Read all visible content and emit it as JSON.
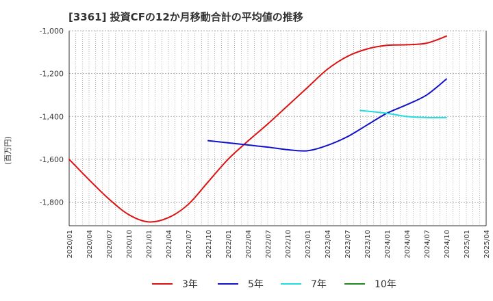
{
  "title": "[3361]  投資CFの12か月移動合計の平均値の推移",
  "chart_data": {
    "type": "line",
    "title": "[3361]  投資CFの12か月移動合計の平均値の推移",
    "ylabel": "(百万円)",
    "xlabel": "",
    "ylim": [
      -1910,
      -1000
    ],
    "yticks": [
      -1000,
      -1200,
      -1400,
      -1600,
      -1800
    ],
    "ytick_labels": [
      "-1,000",
      "-1,200",
      "-1,400",
      "-1,600",
      "-1,800"
    ],
    "xrange": [
      "2020-01",
      "2025-04"
    ],
    "xticks": [
      "2020/01",
      "2020/04",
      "2020/07",
      "2020/10",
      "2021/01",
      "2021/04",
      "2021/07",
      "2021/10",
      "2022/01",
      "2022/04",
      "2022/07",
      "2022/10",
      "2023/01",
      "2023/04",
      "2023/07",
      "2023/10",
      "2024/01",
      "2024/04",
      "2024/07",
      "2024/10",
      "2025/01",
      "2025/04"
    ],
    "grid": true,
    "legend_position": "bottom",
    "series": [
      {
        "name": "3年",
        "color": "#dd1111",
        "points": [
          [
            "2020-01",
            -1600
          ],
          [
            "2020-04",
            -1695
          ],
          [
            "2020-07",
            -1785
          ],
          [
            "2020-10",
            -1858
          ],
          [
            "2021-01",
            -1892
          ],
          [
            "2021-04",
            -1872
          ],
          [
            "2021-07",
            -1810
          ],
          [
            "2021-10",
            -1705
          ],
          [
            "2022-01",
            -1600
          ],
          [
            "2022-04",
            -1515
          ],
          [
            "2022-07",
            -1435
          ],
          [
            "2022-10",
            -1350
          ],
          [
            "2023-01",
            -1265
          ],
          [
            "2023-04",
            -1180
          ],
          [
            "2023-07",
            -1120
          ],
          [
            "2023-10",
            -1085
          ],
          [
            "2024-01",
            -1068
          ],
          [
            "2024-04",
            -1065
          ],
          [
            "2024-07",
            -1058
          ],
          [
            "2024-10",
            -1025
          ]
        ]
      },
      {
        "name": "5年",
        "color": "#1111cc",
        "points": [
          [
            "2021-10",
            -1513
          ],
          [
            "2022-01",
            -1523
          ],
          [
            "2022-04",
            -1533
          ],
          [
            "2022-07",
            -1543
          ],
          [
            "2022-10",
            -1555
          ],
          [
            "2023-01",
            -1560
          ],
          [
            "2023-04",
            -1535
          ],
          [
            "2023-07",
            -1495
          ],
          [
            "2023-10",
            -1440
          ],
          [
            "2024-01",
            -1385
          ],
          [
            "2024-04",
            -1345
          ],
          [
            "2024-07",
            -1300
          ],
          [
            "2024-10",
            -1225
          ]
        ]
      },
      {
        "name": "7年",
        "color": "#22dddd",
        "points": [
          [
            "2023-09",
            -1372
          ],
          [
            "2024-01",
            -1385
          ],
          [
            "2024-04",
            -1400
          ],
          [
            "2024-07",
            -1405
          ],
          [
            "2024-10",
            -1405
          ]
        ]
      },
      {
        "name": "10年",
        "color": "#228822",
        "points": []
      }
    ]
  }
}
